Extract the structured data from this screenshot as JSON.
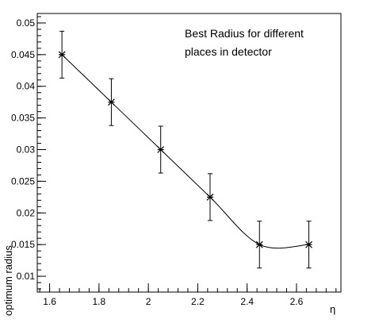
{
  "chart_data": {
    "type": "line",
    "title_lines": [
      "Best Radius for different",
      "places in detector"
    ],
    "xlabel": "η",
    "ylabel": "optimum radius",
    "xlim": [
      1.55,
      2.78
    ],
    "ylim": [
      0.0075,
      0.0515
    ],
    "x_ticks": [
      1.6,
      1.8,
      2.0,
      2.2,
      2.4,
      2.6
    ],
    "x_tick_labels": [
      "1.6",
      "1.8",
      "2",
      "2.2",
      "2.4",
      "2.6"
    ],
    "y_ticks": [
      0.01,
      0.015,
      0.02,
      0.025,
      0.03,
      0.035,
      0.04,
      0.045,
      0.05
    ],
    "y_tick_labels": [
      "0.01",
      "0.015",
      "0.02",
      "0.025",
      "0.03",
      "0.035",
      "0.04",
      "0.045",
      "0.05"
    ],
    "grid": false,
    "series": [
      {
        "x": [
          1.65,
          1.85,
          2.05,
          2.25,
          2.45,
          2.65
        ],
        "y": [
          0.045,
          0.0375,
          0.03,
          0.0225,
          0.015,
          0.015
        ],
        "yerr": [
          0.0037,
          0.0037,
          0.0037,
          0.0037,
          0.0037,
          0.0037
        ]
      }
    ]
  }
}
